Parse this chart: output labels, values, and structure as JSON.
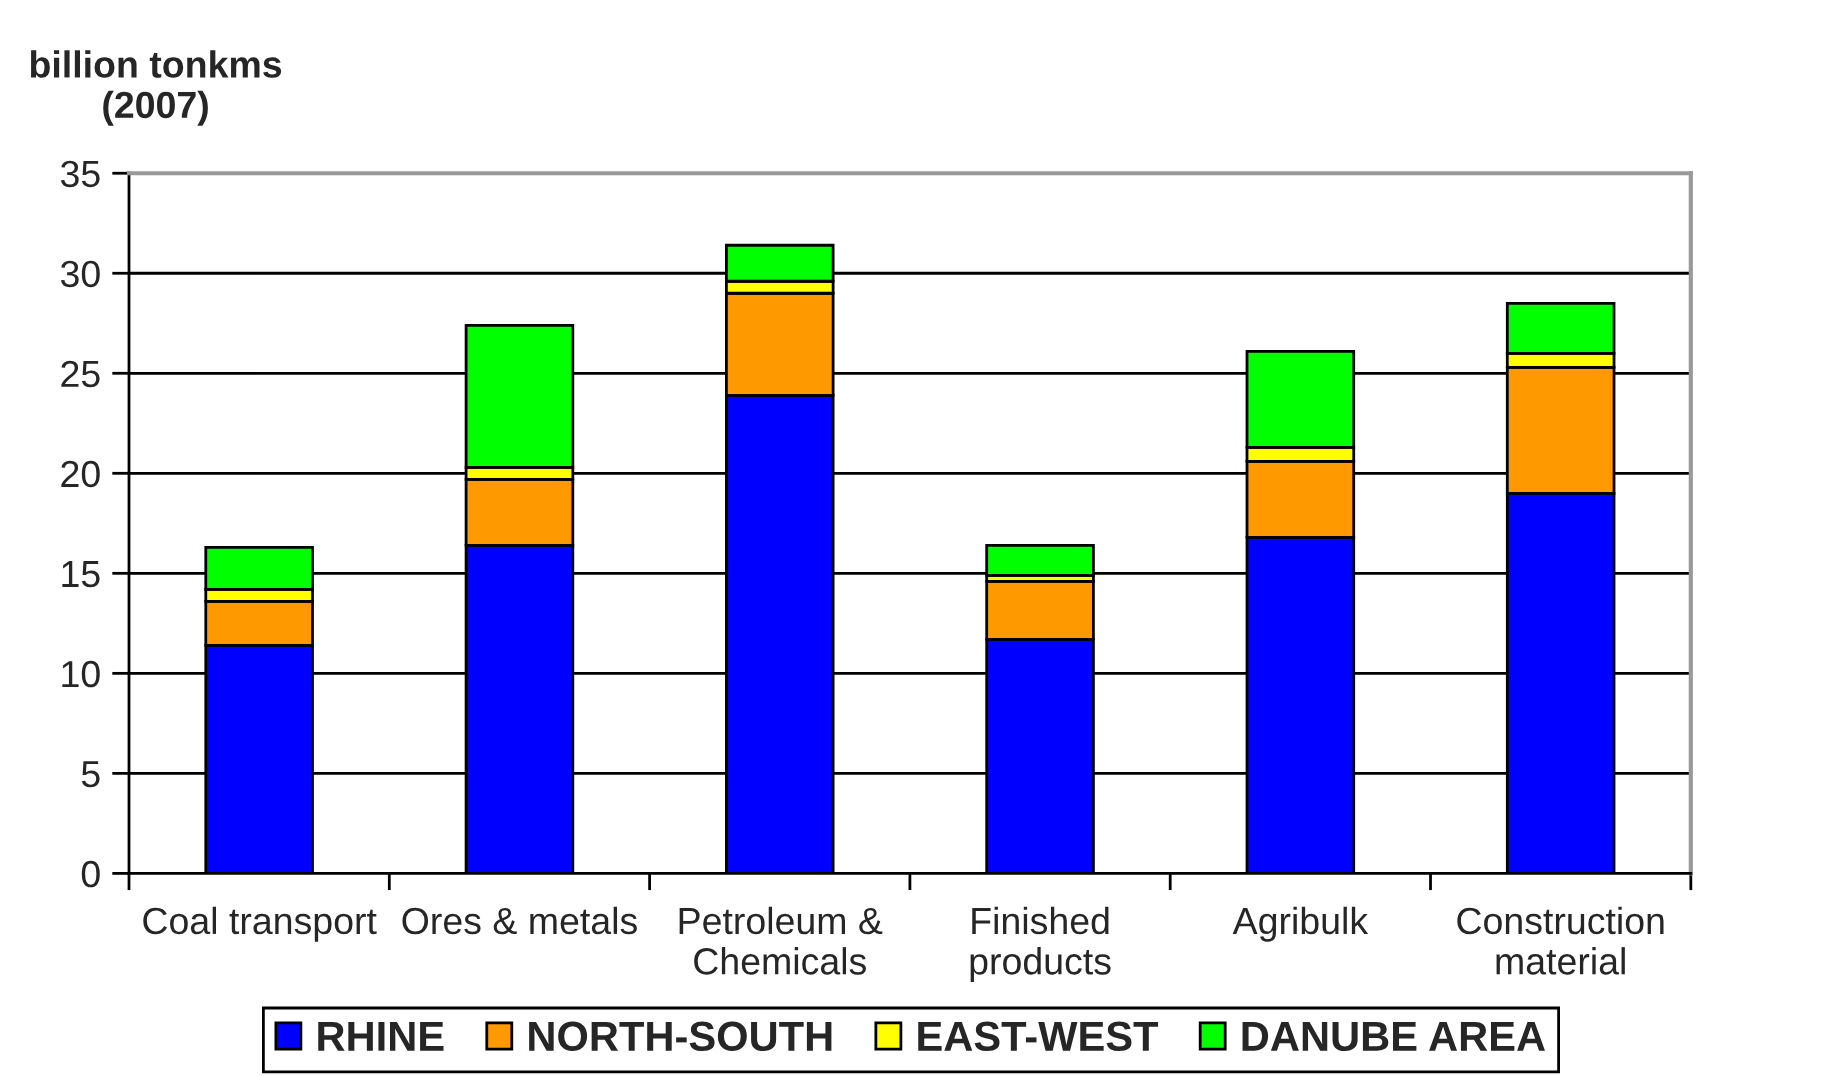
{
  "chart_data": {
    "type": "bar",
    "ylabel": "billion tonkms\n(2007)",
    "categories": [
      "Coal transport",
      "Ores & metals",
      "Petroleum &\nChemicals",
      "Finished\nproducts",
      "Agribulk",
      "Construction\nmaterial"
    ],
    "stacked": true,
    "series": [
      {
        "name": "RHINE",
        "color": "#0000ff",
        "values": [
          11.4,
          16.4,
          23.9,
          11.7,
          16.8,
          19.0
        ]
      },
      {
        "name": "NORTH-SOUTH",
        "color": "#ff9900",
        "values": [
          2.2,
          3.3,
          5.1,
          2.9,
          3.8,
          6.3
        ]
      },
      {
        "name": "EAST-WEST",
        "color": "#ffff00",
        "values": [
          0.6,
          0.6,
          0.6,
          0.3,
          0.7,
          0.7
        ]
      },
      {
        "name": "DANUBE AREA",
        "color": "#00ff00",
        "values": [
          2.1,
          7.1,
          1.8,
          1.5,
          4.8,
          2.5
        ]
      }
    ],
    "ylim": [
      0,
      35
    ],
    "yticks": [
      0,
      5,
      10,
      15,
      20,
      25,
      30,
      35
    ],
    "grid": "y",
    "legend": "bottom"
  }
}
